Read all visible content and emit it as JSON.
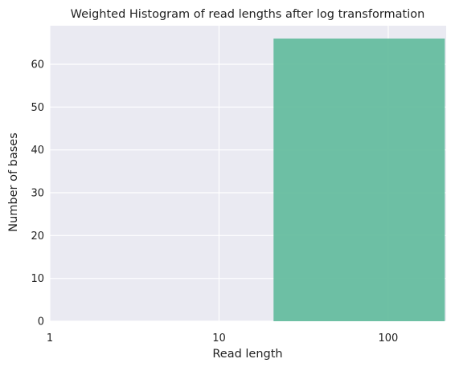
{
  "chart_data": {
    "type": "bar",
    "title": "Weighted Histogram of read lengths after log transformation",
    "xlabel": "Read length",
    "ylabel": "Number of bases",
    "x_scale": "log",
    "xlim": [
      1,
      220
    ],
    "ylim": [
      0,
      69
    ],
    "xticks": [
      1,
      10,
      100
    ],
    "xtick_labels": [
      "1",
      "10",
      "100"
    ],
    "yticks": [
      0,
      10,
      20,
      30,
      40,
      50,
      60
    ],
    "ytick_labels": [
      "0",
      "10",
      "20",
      "30",
      "40",
      "50",
      "60"
    ],
    "bins": [
      {
        "x_start": 21,
        "x_end": 216,
        "value": 66
      }
    ],
    "grid": true,
    "bar_color": "#66bd9f",
    "background_color": "#eaeaf2"
  }
}
